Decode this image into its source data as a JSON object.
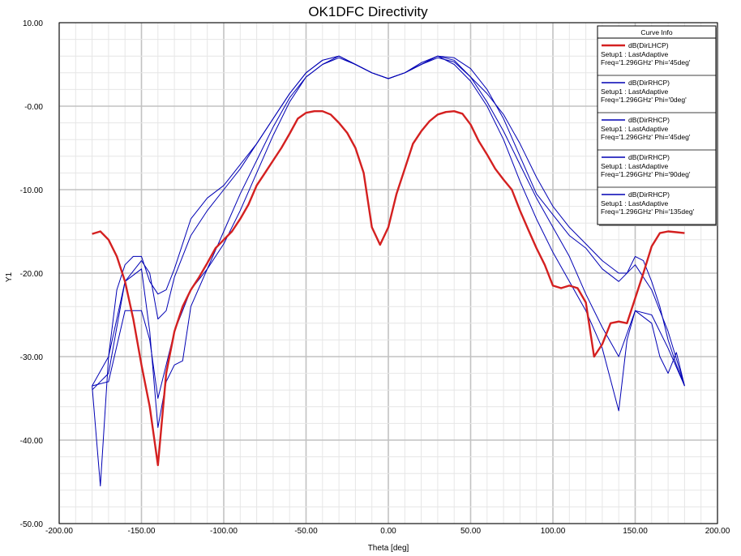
{
  "chart_data": {
    "type": "line",
    "title": "OK1DFC Directivity",
    "xlabel": "Theta [deg]",
    "ylabel": "Y1",
    "xlim": [
      -200,
      200
    ],
    "ylim": [
      -50,
      10
    ],
    "xticks": [
      -200,
      -150,
      -100,
      -50,
      0,
      50,
      100,
      150,
      200
    ],
    "yticks": [
      10,
      0,
      -10,
      -20,
      -30,
      -40,
      -50
    ],
    "xtick_labels": [
      "-200.00",
      "-150.00",
      "-100.00",
      "-50.00",
      "0.00",
      "50.00",
      "100.00",
      "150.00",
      "200.00"
    ],
    "ytick_labels": [
      "10.00",
      "-0.00",
      "-10.00",
      "-20.00",
      "-30.00",
      "-40.00",
      "-50.00"
    ],
    "grid": true,
    "legend": {
      "title": "Curve Info",
      "position": "top-right"
    },
    "series": [
      {
        "name": "dB(DirLHCP)",
        "lines": [
          "Setup1 : LastAdaptive",
          "Freq='1.296GHz' Phi='45deg'"
        ],
        "color": "#d42020",
        "x": [
          -180,
          -175,
          -170,
          -165,
          -160,
          -155,
          -150,
          -145,
          -140,
          -135,
          -130,
          -125,
          -120,
          -115,
          -110,
          -105,
          -100,
          -95,
          -90,
          -85,
          -80,
          -75,
          -70,
          -65,
          -60,
          -55,
          -50,
          -45,
          -40,
          -35,
          -30,
          -25,
          -20,
          -15,
          -10,
          -5,
          0,
          5,
          10,
          15,
          20,
          25,
          30,
          35,
          40,
          45,
          50,
          55,
          60,
          65,
          70,
          75,
          80,
          85,
          90,
          95,
          100,
          105,
          110,
          115,
          120,
          125,
          130,
          135,
          140,
          145,
          150,
          155,
          160,
          165,
          170,
          175,
          180
        ],
        "y": [
          -15.3,
          -15.0,
          -16.0,
          -18.0,
          -21.0,
          -25.5,
          -31.0,
          -36.0,
          -43.0,
          -32.0,
          -27.0,
          -24.0,
          -22.0,
          -20.5,
          -18.8,
          -17.0,
          -16.0,
          -15.0,
          -13.5,
          -11.8,
          -9.5,
          -8.0,
          -6.5,
          -5.0,
          -3.3,
          -1.5,
          -0.8,
          -0.6,
          -0.6,
          -1.0,
          -2.0,
          -3.2,
          -5.0,
          -8.0,
          -14.5,
          -16.6,
          -14.5,
          -10.5,
          -7.5,
          -4.5,
          -3.0,
          -1.8,
          -1.0,
          -0.7,
          -0.6,
          -0.9,
          -2.2,
          -4.2,
          -5.8,
          -7.5,
          -8.8,
          -10.0,
          -12.5,
          -14.8,
          -17.0,
          -19.0,
          -21.5,
          -21.8,
          -21.5,
          -21.8,
          -23.5,
          -30.0,
          -28.5,
          -26.0,
          -25.8,
          -26.0,
          -23.0,
          -20.0,
          -16.8,
          -15.2,
          -15.0,
          -15.1,
          -15.2
        ],
        "note": "dense data approximated"
      },
      {
        "name": "dB(DirRHCP)",
        "lines": [
          "Setup1 : LastAdaptive",
          "Freq='1.296GHz' Phi='0deg'"
        ],
        "color": "#0000b4",
        "x": [
          -180,
          -175,
          -170,
          -165,
          -160,
          -155,
          -150,
          -145,
          -140,
          -135,
          -130,
          -120,
          -110,
          -100,
          -90,
          -80,
          -70,
          -60,
          -50,
          -40,
          -30,
          -20,
          -10,
          0,
          10,
          20,
          30,
          40,
          50,
          60,
          70,
          80,
          90,
          100,
          110,
          120,
          130,
          140,
          145,
          150,
          155,
          160,
          165,
          170,
          175,
          180
        ],
        "y": [
          -33.5,
          -45.5,
          -30.0,
          -22.0,
          -19.0,
          -18.0,
          -18.0,
          -21.0,
          -22.5,
          -22.0,
          -19.5,
          -13.5,
          -11.0,
          -9.5,
          -7.0,
          -4.5,
          -1.5,
          1.5,
          4.0,
          5.5,
          6.0,
          5.0,
          4.0,
          3.3,
          4.0,
          5.0,
          5.8,
          5.3,
          3.5,
          1.5,
          -1.0,
          -4.5,
          -8.5,
          -12.0,
          -14.5,
          -16.5,
          -18.5,
          -20.0,
          -20.0,
          -18.0,
          -18.5,
          -21.0,
          -24.0,
          -28.0,
          -31.0,
          -33.5
        ],
        "note": "dense data approximated"
      },
      {
        "name": "dB(DirRHCP)",
        "lines": [
          "Setup1 : LastAdaptive",
          "Freq='1.296GHz' Phi='45deg'"
        ],
        "color": "#0000b4",
        "x": [
          -180,
          -170,
          -160,
          -150,
          -145,
          -140,
          -135,
          -130,
          -120,
          -110,
          -100,
          -90,
          -80,
          -70,
          -60,
          -50,
          -40,
          -30,
          -20,
          -10,
          0,
          10,
          20,
          30,
          40,
          50,
          60,
          70,
          80,
          90,
          100,
          110,
          120,
          130,
          140,
          150,
          160,
          170,
          180
        ],
        "y": [
          -33.5,
          -33.0,
          -24.5,
          -24.5,
          -28.0,
          -35.0,
          -31.0,
          -27.0,
          -22.0,
          -19.5,
          -15.0,
          -10.5,
          -6.5,
          -2.5,
          1.0,
          3.5,
          5.0,
          6.0,
          5.0,
          4.0,
          3.3,
          4.0,
          5.0,
          6.0,
          5.5,
          3.5,
          0.5,
          -3.0,
          -7.0,
          -11.0,
          -14.5,
          -18.0,
          -22.5,
          -26.5,
          -30.0,
          -24.5,
          -25.0,
          -29.0,
          -33.5
        ],
        "note": "dense data approximated"
      },
      {
        "name": "dB(DirRHCP)",
        "lines": [
          "Setup1 : LastAdaptive",
          "Freq='1.296GHz' Phi='90deg'"
        ],
        "color": "#0000b4",
        "x": [
          -180,
          -170,
          -160,
          -150,
          -145,
          -140,
          -135,
          -130,
          -120,
          -110,
          -100,
          -90,
          -80,
          -70,
          -60,
          -50,
          -40,
          -30,
          -20,
          -10,
          0,
          10,
          20,
          30,
          40,
          50,
          60,
          70,
          80,
          90,
          100,
          110,
          120,
          130,
          140,
          150,
          160,
          170,
          180
        ],
        "y": [
          -34.0,
          -32.0,
          -21.0,
          -18.5,
          -20.0,
          -25.5,
          -24.5,
          -20.5,
          -15.5,
          -12.5,
          -10.0,
          -7.5,
          -4.5,
          -1.5,
          1.5,
          4.0,
          5.5,
          6.0,
          5.0,
          4.0,
          3.3,
          4.0,
          5.2,
          6.0,
          5.8,
          4.5,
          2.0,
          -1.5,
          -6.0,
          -10.5,
          -13.0,
          -15.5,
          -17.0,
          -19.5,
          -21.0,
          -19.0,
          -22.0,
          -27.0,
          -33.5
        ],
        "note": "dense data approximated"
      },
      {
        "name": "dB(DirRHCP)",
        "lines": [
          "Setup1 : LastAdaptive",
          "Freq='1.296GHz' Phi='135deg'"
        ],
        "color": "#0000b4",
        "x": [
          -180,
          -170,
          -160,
          -150,
          -145,
          -140,
          -135,
          -130,
          -125,
          -120,
          -110,
          -100,
          -90,
          -80,
          -70,
          -60,
          -50,
          -40,
          -30,
          -20,
          -10,
          0,
          10,
          20,
          30,
          40,
          50,
          60,
          70,
          80,
          90,
          100,
          110,
          120,
          130,
          140,
          145,
          150,
          160,
          165,
          170,
          175,
          180
        ],
        "y": [
          -33.5,
          -30.0,
          -21.0,
          -19.5,
          -27.0,
          -38.5,
          -33.0,
          -31.0,
          -30.5,
          -24.0,
          -19.5,
          -16.5,
          -12.5,
          -8.0,
          -3.5,
          0.5,
          3.5,
          5.0,
          5.8,
          5.0,
          4.0,
          3.3,
          4.0,
          5.0,
          6.0,
          5.0,
          3.0,
          0.0,
          -4.0,
          -9.0,
          -13.5,
          -17.5,
          -21.0,
          -24.5,
          -29.0,
          -36.5,
          -28.0,
          -24.5,
          -26.0,
          -30.0,
          -32.0,
          -29.5,
          -33.5
        ],
        "note": "dense data approximated"
      }
    ]
  }
}
